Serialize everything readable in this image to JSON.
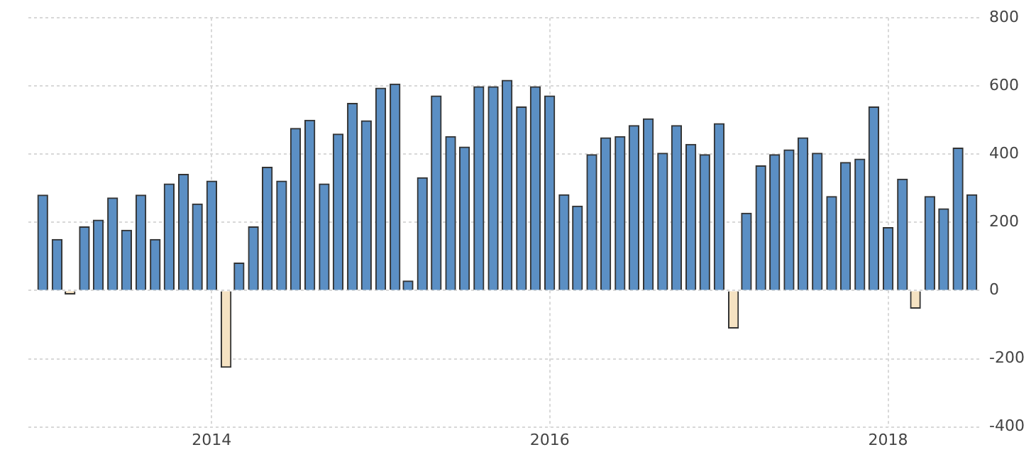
{
  "chart_data": {
    "type": "bar",
    "x": [
      "2013-01",
      "2013-02",
      "2013-03",
      "2013-04",
      "2013-05",
      "2013-06",
      "2013-07",
      "2013-08",
      "2013-09",
      "2013-10",
      "2013-11",
      "2013-12",
      "2014-01",
      "2014-02",
      "2014-03",
      "2014-04",
      "2014-05",
      "2014-06",
      "2014-07",
      "2014-08",
      "2014-09",
      "2014-10",
      "2014-11",
      "2014-12",
      "2015-01",
      "2015-02",
      "2015-03",
      "2015-04",
      "2015-05",
      "2015-06",
      "2015-07",
      "2015-08",
      "2015-09",
      "2015-10",
      "2015-11",
      "2015-12",
      "2016-01",
      "2016-02",
      "2016-03",
      "2016-04",
      "2016-05",
      "2016-06",
      "2016-07",
      "2016-08",
      "2016-09",
      "2016-10",
      "2016-11",
      "2016-12",
      "2017-01",
      "2017-02",
      "2017-03",
      "2017-04",
      "2017-05",
      "2017-06",
      "2017-07",
      "2017-08",
      "2017-09",
      "2017-10",
      "2017-11",
      "2017-12",
      "2018-01",
      "2018-02",
      "2018-03",
      "2018-04",
      "2018-05",
      "2018-06",
      "2018-07"
    ],
    "values": [
      280,
      150,
      -10,
      187,
      207,
      272,
      177,
      280,
      150,
      313,
      341,
      254,
      321,
      -225,
      81,
      187,
      362,
      321,
      476,
      500,
      313,
      459,
      549,
      498,
      594,
      606,
      28,
      331,
      571,
      452,
      421,
      598,
      598,
      617,
      539,
      598,
      571,
      281,
      248,
      399,
      448,
      452,
      484,
      504,
      403,
      484,
      429,
      399,
      490,
      -110,
      227,
      366,
      399,
      413,
      448,
      403,
      276,
      376,
      386,
      539,
      185,
      327,
      -52,
      276,
      240,
      418,
      281
    ],
    "colors": [
      "#5b8fc4",
      "#5b8fc4",
      "#f5e2c2",
      "#5b8fc4",
      "#5b8fc4",
      "#5b8fc4",
      "#5b8fc4",
      "#5b8fc4",
      "#5b8fc4",
      "#5b8fc4",
      "#5b8fc4",
      "#5b8fc4",
      "#5b8fc4",
      "#f5e2c2",
      "#5b8fc4",
      "#5b8fc4",
      "#5b8fc4",
      "#5b8fc4",
      "#5b8fc4",
      "#5b8fc4",
      "#5b8fc4",
      "#5b8fc4",
      "#5b8fc4",
      "#5b8fc4",
      "#5b8fc4",
      "#5b8fc4",
      "#5b8fc4",
      "#5b8fc4",
      "#5b8fc4",
      "#5b8fc4",
      "#5b8fc4",
      "#5b8fc4",
      "#5b8fc4",
      "#5b8fc4",
      "#5b8fc4",
      "#5b8fc4",
      "#5b8fc4",
      "#5b8fc4",
      "#5b8fc4",
      "#5b8fc4",
      "#5b8fc4",
      "#5b8fc4",
      "#5b8fc4",
      "#5b8fc4",
      "#5b8fc4",
      "#5b8fc4",
      "#5b8fc4",
      "#5b8fc4",
      "#5b8fc4",
      "#f5e2c2",
      "#5b8fc4",
      "#5b8fc4",
      "#5b8fc4",
      "#5b8fc4",
      "#5b8fc4",
      "#5b8fc4",
      "#5b8fc4",
      "#5b8fc4",
      "#5b8fc4",
      "#5b8fc4",
      "#5b8fc4",
      "#5b8fc4",
      "#f5e2c2",
      "#5b8fc4",
      "#5b8fc4",
      "#5b8fc4",
      "#5b8fc4"
    ],
    "xlim": [
      "2012-12-01",
      "2018-07-20"
    ],
    "xticks": [
      "2014",
      "2016",
      "2018"
    ],
    "ylim": [
      -400,
      800
    ],
    "yticks": [
      -400,
      -200,
      0,
      200,
      400,
      600,
      800
    ],
    "grid": true
  }
}
